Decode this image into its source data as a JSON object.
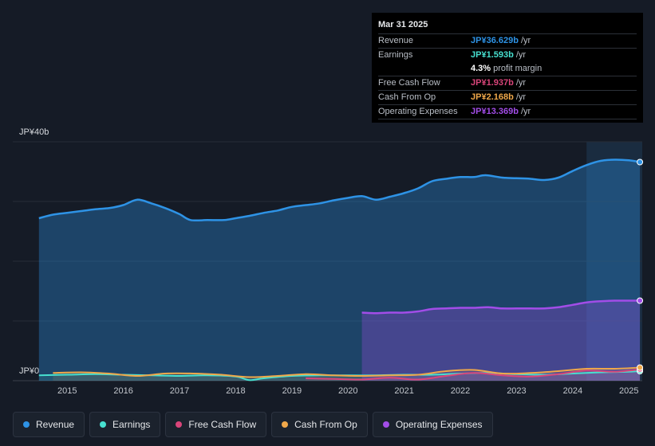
{
  "chart_data": {
    "type": "area",
    "title": "",
    "currency_unit": "JP¥",
    "y_axis": {
      "labels": [
        "JP¥40b",
        "JP¥0"
      ],
      "ylim": [
        0,
        40
      ]
    },
    "x_axis": {
      "labels": [
        "2015",
        "2016",
        "2017",
        "2018",
        "2019",
        "2020",
        "2021",
        "2022",
        "2023",
        "2024",
        "2025"
      ]
    },
    "series": [
      {
        "name": "Revenue",
        "color": "#2e93e6",
        "points": [
          [
            2014.5,
            27.2
          ],
          [
            2014.75,
            27.8
          ],
          [
            2015.0,
            28.1
          ],
          [
            2015.25,
            28.4
          ],
          [
            2015.5,
            28.7
          ],
          [
            2015.75,
            28.9
          ],
          [
            2016.0,
            29.4
          ],
          [
            2016.25,
            30.3
          ],
          [
            2016.5,
            29.7
          ],
          [
            2016.75,
            28.9
          ],
          [
            2017.0,
            27.9
          ],
          [
            2017.2,
            26.9
          ],
          [
            2017.5,
            26.9
          ],
          [
            2017.8,
            26.9
          ],
          [
            2018.0,
            27.2
          ],
          [
            2018.25,
            27.6
          ],
          [
            2018.5,
            28.1
          ],
          [
            2018.75,
            28.5
          ],
          [
            2019.0,
            29.1
          ],
          [
            2019.25,
            29.4
          ],
          [
            2019.5,
            29.7
          ],
          [
            2019.75,
            30.2
          ],
          [
            2020.0,
            30.6
          ],
          [
            2020.25,
            30.9
          ],
          [
            2020.5,
            30.3
          ],
          [
            2020.75,
            30.8
          ],
          [
            2021.0,
            31.4
          ],
          [
            2021.25,
            32.2
          ],
          [
            2021.5,
            33.4
          ],
          [
            2021.75,
            33.8
          ],
          [
            2022.0,
            34.1
          ],
          [
            2022.25,
            34.1
          ],
          [
            2022.45,
            34.4
          ],
          [
            2022.75,
            34.0
          ],
          [
            2023.0,
            33.9
          ],
          [
            2023.25,
            33.8
          ],
          [
            2023.5,
            33.6
          ],
          [
            2023.75,
            34.0
          ],
          [
            2024.0,
            35.1
          ],
          [
            2024.25,
            36.1
          ],
          [
            2024.5,
            36.8
          ],
          [
            2024.75,
            37.0
          ],
          [
            2025.0,
            36.9
          ],
          [
            2025.2,
            36.6
          ]
        ]
      },
      {
        "name": "Earnings",
        "color": "#47e0d0",
        "points": [
          [
            2014.5,
            0.9
          ],
          [
            2015.0,
            1.0
          ],
          [
            2015.5,
            1.1
          ],
          [
            2016.0,
            1.0
          ],
          [
            2016.5,
            0.9
          ],
          [
            2017.0,
            0.8
          ],
          [
            2017.5,
            0.9
          ],
          [
            2018.0,
            0.7
          ],
          [
            2018.25,
            0.1
          ],
          [
            2018.5,
            0.4
          ],
          [
            2019.0,
            0.8
          ],
          [
            2019.5,
            0.9
          ],
          [
            2020.0,
            0.9
          ],
          [
            2020.5,
            0.9
          ],
          [
            2021.0,
            1.0
          ],
          [
            2021.5,
            1.0
          ],
          [
            2022.0,
            1.2
          ],
          [
            2022.5,
            1.3
          ],
          [
            2023.0,
            1.1
          ],
          [
            2023.5,
            1.0
          ],
          [
            2024.0,
            1.2
          ],
          [
            2024.5,
            1.4
          ],
          [
            2025.0,
            1.5
          ],
          [
            2025.2,
            1.6
          ]
        ]
      },
      {
        "name": "Free Cash Flow",
        "color": "#d9457a",
        "points": [
          [
            2019.25,
            0.4
          ],
          [
            2019.75,
            0.3
          ],
          [
            2020.25,
            0.2
          ],
          [
            2020.75,
            0.5
          ],
          [
            2021.25,
            0.2
          ],
          [
            2021.75,
            0.8
          ],
          [
            2022.25,
            1.3
          ],
          [
            2022.75,
            0.9
          ],
          [
            2023.25,
            0.7
          ],
          [
            2023.75,
            1.1
          ],
          [
            2024.25,
            1.7
          ],
          [
            2024.75,
            1.5
          ],
          [
            2025.2,
            1.9
          ]
        ]
      },
      {
        "name": "Cash From Op",
        "color": "#f0a84a",
        "points": [
          [
            2014.75,
            1.3
          ],
          [
            2015.25,
            1.4
          ],
          [
            2015.75,
            1.2
          ],
          [
            2016.25,
            0.8
          ],
          [
            2016.75,
            1.2
          ],
          [
            2017.25,
            1.2
          ],
          [
            2017.75,
            1.0
          ],
          [
            2018.25,
            0.6
          ],
          [
            2018.75,
            0.8
          ],
          [
            2019.25,
            1.1
          ],
          [
            2019.75,
            0.9
          ],
          [
            2020.25,
            0.8
          ],
          [
            2020.75,
            0.9
          ],
          [
            2021.25,
            1.0
          ],
          [
            2021.75,
            1.6
          ],
          [
            2022.25,
            1.8
          ],
          [
            2022.75,
            1.2
          ],
          [
            2023.25,
            1.3
          ],
          [
            2023.75,
            1.6
          ],
          [
            2024.25,
            2.0
          ],
          [
            2024.75,
            2.0
          ],
          [
            2025.2,
            2.2
          ]
        ]
      },
      {
        "name": "Operating Expenses",
        "color": "#a24de8",
        "points": [
          [
            2020.25,
            11.4
          ],
          [
            2020.5,
            11.3
          ],
          [
            2020.75,
            11.4
          ],
          [
            2021.0,
            11.4
          ],
          [
            2021.25,
            11.6
          ],
          [
            2021.5,
            12.0
          ],
          [
            2021.75,
            12.1
          ],
          [
            2022.0,
            12.2
          ],
          [
            2022.25,
            12.2
          ],
          [
            2022.5,
            12.3
          ],
          [
            2022.75,
            12.1
          ],
          [
            2023.0,
            12.1
          ],
          [
            2023.25,
            12.1
          ],
          [
            2023.5,
            12.1
          ],
          [
            2023.75,
            12.3
          ],
          [
            2024.0,
            12.7
          ],
          [
            2024.25,
            13.1
          ],
          [
            2024.5,
            13.3
          ],
          [
            2024.75,
            13.4
          ],
          [
            2025.0,
            13.4
          ],
          [
            2025.2,
            13.4
          ]
        ]
      }
    ]
  },
  "tooltip": {
    "date": "Mar 31 2025",
    "rows": [
      {
        "label": "Revenue",
        "value": "JP¥36.629b",
        "unit": "/yr",
        "color": "#2e93e6"
      },
      {
        "label": "Earnings",
        "value": "JP¥1.593b",
        "unit": "/yr",
        "color": "#47e0d0"
      },
      {
        "label": "",
        "value": "4.3%",
        "unit": "profit margin",
        "color": "#ffffff"
      },
      {
        "label": "Free Cash Flow",
        "value": "JP¥1.937b",
        "unit": "/yr",
        "color": "#d9457a"
      },
      {
        "label": "Cash From Op",
        "value": "JP¥2.168b",
        "unit": "/yr",
        "color": "#f0a84a"
      },
      {
        "label": "Operating Expenses",
        "value": "JP¥13.369b",
        "unit": "/yr",
        "color": "#a24de8"
      }
    ]
  },
  "legend": [
    {
      "label": "Revenue",
      "color": "#2e93e6"
    },
    {
      "label": "Earnings",
      "color": "#47e0d0"
    },
    {
      "label": "Free Cash Flow",
      "color": "#d9457a"
    },
    {
      "label": "Cash From Op",
      "color": "#f0a84a"
    },
    {
      "label": "Operating Expenses",
      "color": "#a24de8"
    }
  ]
}
